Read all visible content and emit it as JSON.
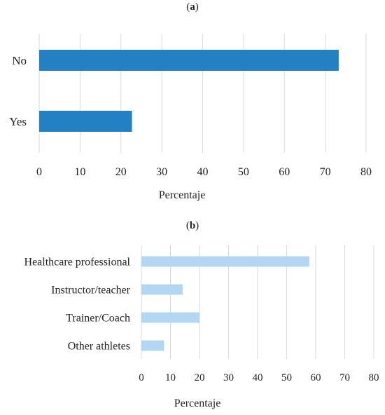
{
  "panels": [
    {
      "label_open": "(",
      "label_letter": "a",
      "label_close": ")"
    },
    {
      "label_open": "(",
      "label_letter": "b",
      "label_close": ")"
    }
  ],
  "chart_data": [
    {
      "type": "bar",
      "orientation": "horizontal",
      "categories": [
        "No",
        "Yes"
      ],
      "values": [
        73.3,
        22.7
      ],
      "xlabel": "Percentaje",
      "xlim": [
        0,
        80
      ],
      "xticks": [
        0,
        10,
        20,
        30,
        40,
        50,
        60,
        70,
        80
      ],
      "grid": "vertical",
      "bar_color": "#2381c3"
    },
    {
      "type": "bar",
      "orientation": "horizontal",
      "categories": [
        "Healthcare professional",
        "Instructor/teacher",
        "Trainer/Coach",
        "Other athletes"
      ],
      "values": [
        57.8,
        14.2,
        20.0,
        7.8
      ],
      "xlabel": "Percentaje",
      "xlim": [
        0,
        80
      ],
      "xticks": [
        0,
        10,
        20,
        30,
        40,
        50,
        60,
        70,
        80
      ],
      "grid": "vertical",
      "bar_color": "#b3d7f3"
    }
  ]
}
